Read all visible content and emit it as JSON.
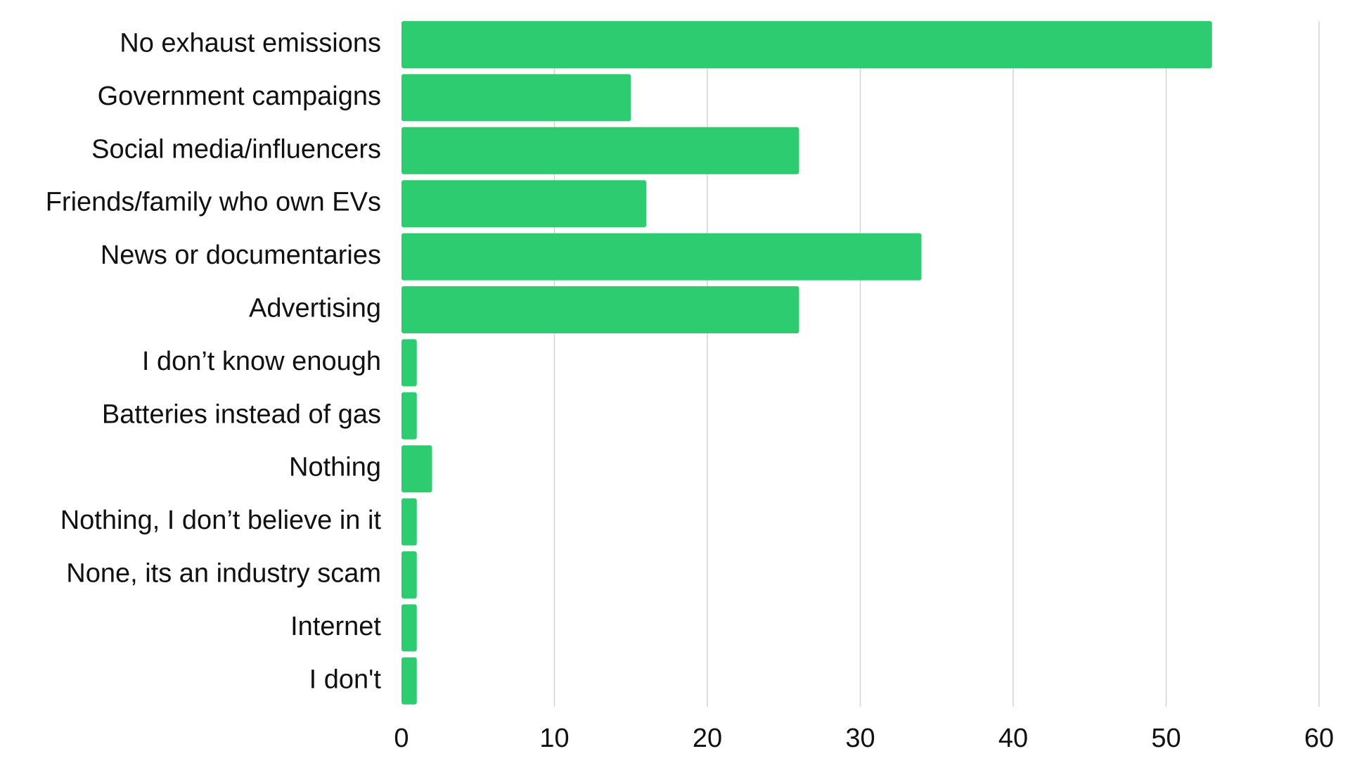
{
  "colors": {
    "bar": "#2ecc71",
    "grid": "#d4d4d4",
    "text": "#111111",
    "background": "#ffffff"
  },
  "chart_data": {
    "type": "bar",
    "orientation": "horizontal",
    "title": "",
    "xlabel": "",
    "ylabel": "",
    "xlim": [
      0,
      60
    ],
    "x_ticks": [
      0,
      10,
      20,
      30,
      40,
      50,
      60
    ],
    "grid": "vertical",
    "legend": "none",
    "categories": [
      "No exhaust emissions",
      "Government campaigns",
      "Social media/influencers",
      "Friends/family who own EVs",
      "News or documentaries",
      "Advertising",
      "I don’t know enough",
      "Batteries instead of gas",
      "Nothing",
      "Nothing, I don’t believe in it",
      "None, its an industry scam",
      "Internet",
      "I don't"
    ],
    "values": [
      53,
      15,
      26,
      16,
      34,
      26,
      1,
      1,
      2,
      1,
      1,
      1,
      1
    ]
  }
}
